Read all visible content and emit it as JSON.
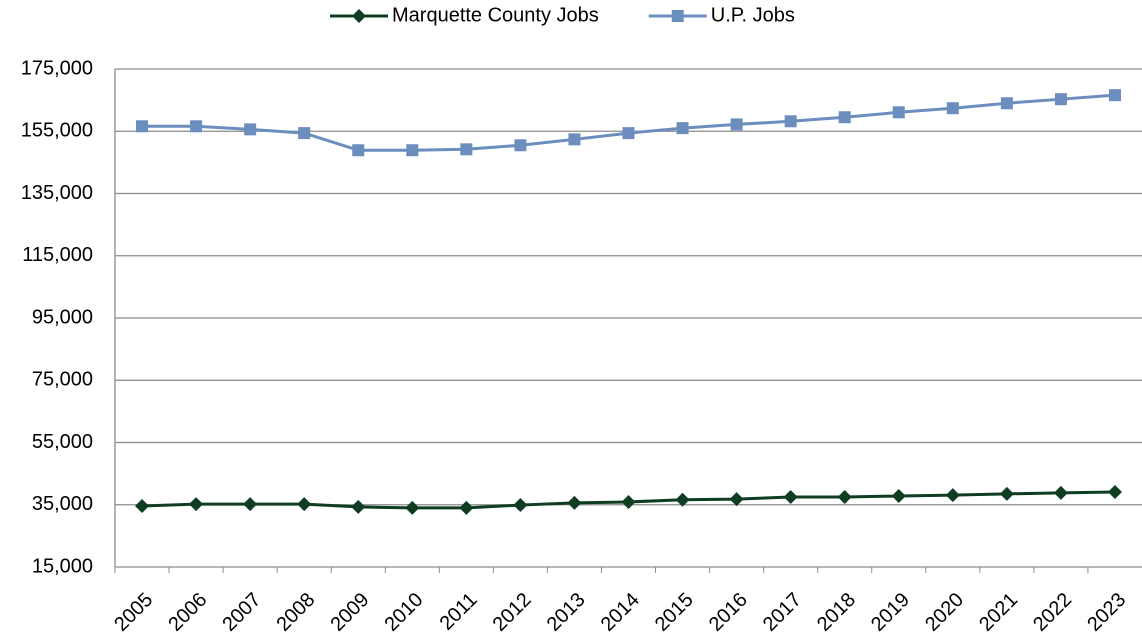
{
  "chart_data": {
    "type": "line",
    "categories": [
      "2005",
      "2006",
      "2007",
      "2008",
      "2009",
      "2010",
      "2011",
      "2012",
      "2013",
      "2014",
      "2015",
      "2016",
      "2017",
      "2018",
      "2019",
      "2020",
      "2021",
      "2022",
      "2023"
    ],
    "series": [
      {
        "name": "Marquette County Jobs",
        "color": "#0f3d22",
        "marker": "diamond",
        "values": [
          34600,
          35200,
          35200,
          35200,
          34300,
          34000,
          34000,
          34900,
          35600,
          35900,
          36600,
          36800,
          37500,
          37500,
          37800,
          38100,
          38500,
          38800,
          39100
        ]
      },
      {
        "name": "U.P. Jobs",
        "color": "#6c8ebf",
        "marker": "square",
        "values": [
          156600,
          156600,
          155600,
          154400,
          148900,
          148900,
          149200,
          150500,
          152400,
          154400,
          156000,
          157200,
          158200,
          159500,
          161100,
          162400,
          164000,
          165300,
          166600
        ]
      }
    ],
    "ylim": [
      15000,
      175000
    ],
    "yticks": [
      {
        "value": 15000,
        "label": "15,000"
      },
      {
        "value": 35000,
        "label": "35,000"
      },
      {
        "value": 55000,
        "label": "55,000"
      },
      {
        "value": 75000,
        "label": "75,000"
      },
      {
        "value": 95000,
        "label": "95,000"
      },
      {
        "value": 115000,
        "label": "115,000"
      },
      {
        "value": 135000,
        "label": "135,000"
      },
      {
        "value": 155000,
        "label": "155,000"
      },
      {
        "value": 175000,
        "label": "175,000"
      }
    ],
    "grid": true,
    "legend": "top"
  }
}
